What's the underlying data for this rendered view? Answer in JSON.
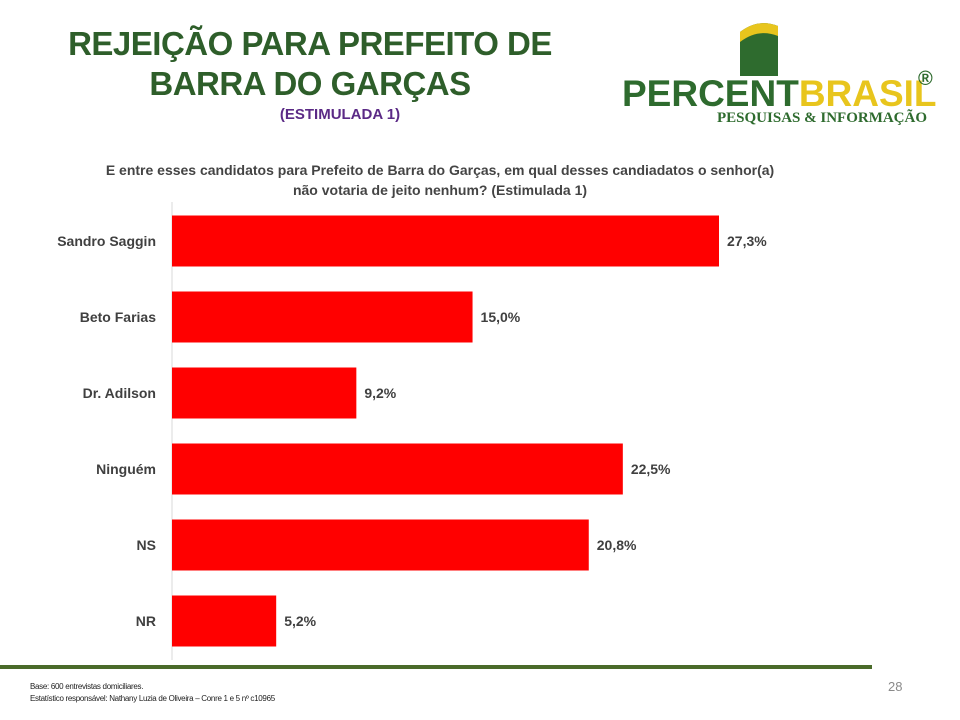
{
  "title": {
    "line1": "REJEIÇÃO PARA PREFEITO DE",
    "line2": "BARRA DO GARÇAS",
    "subtitle": "(ESTIMULADA 1)"
  },
  "logo": {
    "name_part1": "PERCENT",
    "name_part2": "BRASIL",
    "registered": "®",
    "tagline": "PESQUISAS & INFORMAÇÃO"
  },
  "footer": {
    "line1": "Base: 600 entrevistas domiciliares.",
    "line2": "Estatístico responsável: Nathany Luzia de Oliveira – Conre 1 e 5 nº c10965"
  },
  "page_number": "28",
  "colors": {
    "bar": "#ff0000",
    "title": "#2e5e2a",
    "subtitle": "#5b2a86",
    "accent_line": "#4a6b2a"
  },
  "chart_data": {
    "type": "bar",
    "orientation": "horizontal",
    "title": "E entre esses candidatos para Prefeito de Barra do Garças, em qual desses candiadatos o senhor(a) não votaria de jeito nenhum? (Estimulada 1)",
    "title_lines": [
      "E entre esses candidatos para Prefeito de Barra do Garças, em qual desses candiadatos o senhor(a)",
      "não votaria de jeito nenhum? (Estimulada 1)"
    ],
    "categories": [
      "Sandro Saggin",
      "Beto Farias",
      "Dr. Adilson",
      "Ninguém",
      "NS",
      "NR"
    ],
    "values": [
      27.3,
      15.0,
      9.2,
      22.5,
      20.8,
      5.2
    ],
    "data_labels": [
      "27,3%",
      "15,0%",
      "9,2%",
      "22,5%",
      "20,8%",
      "5,2%"
    ],
    "xlim": [
      0,
      30
    ],
    "grid": false,
    "legend": "none"
  }
}
